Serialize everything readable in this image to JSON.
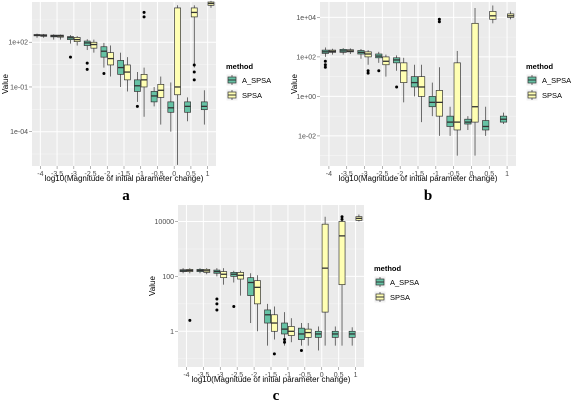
{
  "colors": {
    "A_SPSA": "#66c2a5",
    "SPSA": "#ffffb3",
    "panel_bg": "#ebebeb",
    "grid": "#ffffff",
    "box_line": "#333333"
  },
  "chart_data": [
    {
      "panel_label": "a",
      "type": "boxplot",
      "scale": "log10",
      "xlabel": "log10(Magnitude of initial parameter change)",
      "ylabel": "Value",
      "xticks": [
        "-4",
        "-3.5",
        "-3",
        "-2.5",
        "-2",
        "-1.5",
        "-1",
        "-0.5",
        "0",
        "0.5",
        "1"
      ],
      "yticks": [
        {
          "label": "1e+02",
          "value": 100
        },
        {
          "label": "1e-01",
          "value": 0.1
        },
        {
          "label": "1e-04",
          "value": 0.0001
        }
      ],
      "ylim": [
        5e-07,
        50000
      ],
      "legend": {
        "title": "method",
        "position": "right",
        "entries": [
          "A_SPSA",
          "SPSA"
        ]
      },
      "series": [
        {
          "name": "A_SPSA",
          "boxes": [
            {
              "x": -4,
              "whislo": 200,
              "q1": 270,
              "med": 300,
              "q3": 330,
              "whishi": 380,
              "outliers": []
            },
            {
              "x": -3.5,
              "whislo": 150,
              "q1": 230,
              "med": 270,
              "q3": 300,
              "whishi": 340,
              "outliers": []
            },
            {
              "x": -3,
              "whislo": 80,
              "q1": 150,
              "med": 200,
              "q3": 240,
              "whishi": 300,
              "outliers": [
                10
              ]
            },
            {
              "x": -2.5,
              "whislo": 30,
              "q1": 60,
              "med": 90,
              "q3": 120,
              "whishi": 160,
              "outliers": [
                4,
                1.5
              ]
            },
            {
              "x": -2,
              "whislo": 2,
              "q1": 10,
              "med": 25,
              "q3": 50,
              "whishi": 90,
              "outliers": [
                0.8
              ]
            },
            {
              "x": -1.5,
              "whislo": 0.1,
              "q1": 0.7,
              "med": 2,
              "q3": 6,
              "whishi": 20,
              "outliers": []
            },
            {
              "x": -1,
              "whislo": 0.01,
              "q1": 0.05,
              "med": 0.12,
              "q3": 0.3,
              "whishi": 1.0,
              "outliers": [
                0.005
              ]
            },
            {
              "x": -0.5,
              "whislo": 0.005,
              "q1": 0.01,
              "med": 0.025,
              "q3": 0.05,
              "whishi": 0.1,
              "outliers": []
            },
            {
              "x": 0,
              "whislo": 0.0001,
              "q1": 0.002,
              "med": 0.004,
              "q3": 0.01,
              "whishi": 0.2,
              "outliers": []
            },
            {
              "x": 0.5,
              "whislo": 0.0005,
              "q1": 0.002,
              "med": 0.005,
              "q3": 0.01,
              "whishi": 0.02,
              "outliers": []
            },
            {
              "x": 1,
              "whislo": 0.0003,
              "q1": 0.003,
              "med": 0.005,
              "q3": 0.01,
              "whishi": 0.06,
              "outliers": []
            }
          ]
        },
        {
          "name": "SPSA",
          "boxes": [
            {
              "x": -4,
              "whislo": 200,
              "q1": 250,
              "med": 290,
              "q3": 320,
              "whishi": 360,
              "outliers": []
            },
            {
              "x": -3.5,
              "whislo": 150,
              "q1": 220,
              "med": 260,
              "q3": 300,
              "whishi": 330,
              "outliers": []
            },
            {
              "x": -3,
              "whislo": 60,
              "q1": 110,
              "med": 150,
              "q3": 210,
              "whishi": 260,
              "outliers": []
            },
            {
              "x": -2.5,
              "whislo": 20,
              "q1": 40,
              "med": 70,
              "q3": 100,
              "whishi": 150,
              "outliers": []
            },
            {
              "x": -2,
              "whislo": 0.5,
              "q1": 3,
              "med": 8,
              "q3": 20,
              "whishi": 60,
              "outliers": []
            },
            {
              "x": -1.5,
              "whislo": 0.05,
              "q1": 0.3,
              "med": 1,
              "q3": 3,
              "whishi": 10,
              "outliers": []
            },
            {
              "x": -1,
              "whislo": 0.001,
              "q1": 0.1,
              "med": 0.3,
              "q3": 0.7,
              "whishi": 2,
              "outliers": [
                10000,
                5000
              ]
            },
            {
              "x": -0.5,
              "whislo": 0.0003,
              "q1": 0.02,
              "med": 0.06,
              "q3": 0.15,
              "whishi": 0.5,
              "outliers": []
            },
            {
              "x": 0,
              "whislo": 6e-07,
              "q1": 0.03,
              "med": 0.1,
              "q3": 20000,
              "whishi": 30000,
              "outliers": []
            },
            {
              "x": 0.5,
              "whislo": 2,
              "q1": 5000,
              "med": 10000,
              "q3": 20000,
              "whishi": 30000,
              "outliers": [
                3,
                1,
                0.3
              ]
            },
            {
              "x": 1,
              "whislo": 20000,
              "q1": 30000,
              "med": 40000,
              "q3": 50000,
              "whishi": 60000,
              "outliers": []
            }
          ]
        }
      ]
    },
    {
      "panel_label": "b",
      "type": "boxplot",
      "scale": "log10",
      "xlabel": "log10(Magnitude of initial parameter change)",
      "ylabel": "Value",
      "xticks": [
        "-4",
        "-3.5",
        "-3",
        "-2.5",
        "-2",
        "-1.5",
        "-1",
        "-0.5",
        "0",
        "0.5",
        "1"
      ],
      "yticks": [
        {
          "label": "1e+04",
          "value": 10000
        },
        {
          "label": "1e+02",
          "value": 100
        },
        {
          "label": "1e+00",
          "value": 1
        },
        {
          "label": "1e-02",
          "value": 0.01
        }
      ],
      "ylim": [
        0.0003,
        60000
      ],
      "legend": {
        "title": "method",
        "position": "right",
        "entries": [
          "A_SPSA",
          "SPSA"
        ]
      },
      "series": [
        {
          "name": "A_SPSA",
          "boxes": [
            {
              "x": -4,
              "whislo": 100,
              "q1": 150,
              "med": 180,
              "q3": 220,
              "whishi": 300,
              "outliers": [
                60,
                40,
                30
              ]
            },
            {
              "x": -3.5,
              "whislo": 130,
              "q1": 170,
              "med": 200,
              "q3": 240,
              "whishi": 280,
              "outliers": []
            },
            {
              "x": -3,
              "whislo": 80,
              "q1": 140,
              "med": 170,
              "q3": 210,
              "whishi": 250,
              "outliers": []
            },
            {
              "x": -2.5,
              "whislo": 50,
              "q1": 90,
              "med": 110,
              "q3": 140,
              "whishi": 180,
              "outliers": [
                20
              ]
            },
            {
              "x": -2,
              "whislo": 20,
              "q1": 50,
              "med": 70,
              "q3": 90,
              "whishi": 120,
              "outliers": [
                3
              ]
            },
            {
              "x": -1.5,
              "whislo": 1,
              "q1": 3,
              "med": 5,
              "q3": 10,
              "whishi": 40,
              "outliers": []
            },
            {
              "x": -1,
              "whislo": 0.1,
              "q1": 0.3,
              "med": 0.5,
              "q3": 1.0,
              "whishi": 5,
              "outliers": []
            },
            {
              "x": -0.5,
              "whislo": 0.01,
              "q1": 0.03,
              "med": 0.05,
              "q3": 0.1,
              "whishi": 0.3,
              "outliers": []
            },
            {
              "x": 0,
              "whislo": 0.02,
              "q1": 0.04,
              "med": 0.05,
              "q3": 0.07,
              "whishi": 0.1,
              "outliers": []
            },
            {
              "x": 0.5,
              "whislo": 0.01,
              "q1": 0.02,
              "med": 0.03,
              "q3": 0.06,
              "whishi": 0.3,
              "outliers": []
            },
            {
              "x": 1,
              "whislo": 0.04,
              "q1": 0.05,
              "med": 0.07,
              "q3": 0.1,
              "whishi": 0.15,
              "outliers": []
            }
          ]
        },
        {
          "name": "SPSA",
          "boxes": [
            {
              "x": -4,
              "whislo": 130,
              "q1": 170,
              "med": 190,
              "q3": 220,
              "whishi": 260,
              "outliers": []
            },
            {
              "x": -3.5,
              "whislo": 140,
              "q1": 180,
              "med": 200,
              "q3": 230,
              "whishi": 270,
              "outliers": []
            },
            {
              "x": -3,
              "whislo": 40,
              "q1": 100,
              "med": 140,
              "q3": 180,
              "whishi": 220,
              "outliers": [
                20,
                15
              ]
            },
            {
              "x": -2.5,
              "whislo": 10,
              "q1": 40,
              "med": 60,
              "q3": 100,
              "whishi": 130,
              "outliers": []
            },
            {
              "x": -2,
              "whislo": 0.5,
              "q1": 5,
              "med": 20,
              "q3": 50,
              "whishi": 90,
              "outliers": []
            },
            {
              "x": -1.5,
              "whislo": 0.05,
              "q1": 1,
              "med": 3,
              "q3": 10,
              "whishi": 40,
              "outliers": []
            },
            {
              "x": -1,
              "whislo": 0.01,
              "q1": 0.1,
              "med": 0.5,
              "q3": 2,
              "whishi": 30,
              "outliers": [
                8000,
                6000
              ]
            },
            {
              "x": -0.5,
              "whislo": 0.001,
              "q1": 0.02,
              "med": 0.05,
              "q3": 50,
              "whishi": 200,
              "outliers": []
            },
            {
              "x": 0,
              "whislo": 0.001,
              "q1": 0.05,
              "med": 0.3,
              "q3": 5000,
              "whishi": 30000,
              "outliers": []
            },
            {
              "x": 0.5,
              "whislo": 5000,
              "q1": 8000,
              "med": 12000,
              "q3": 20000,
              "whishi": 40000,
              "outliers": []
            },
            {
              "x": 1,
              "whislo": 8000,
              "q1": 10000,
              "med": 12000,
              "q3": 15000,
              "whishi": 20000,
              "outliers": []
            }
          ]
        }
      ]
    },
    {
      "panel_label": "c",
      "type": "boxplot",
      "scale": "log10",
      "xlabel": "log10(Magnitude of initial parameter change)",
      "ylabel": "Value",
      "xticks": [
        "-4",
        "-3.5",
        "-3",
        "-2.5",
        "-2",
        "-1.5",
        "-1",
        "-0.5",
        "0",
        "0.5",
        "1"
      ],
      "yticks": [
        {
          "label": "10000",
          "value": 10000
        },
        {
          "label": "100",
          "value": 100
        },
        {
          "label": "1",
          "value": 1
        }
      ],
      "ylim": [
        0.05,
        40000
      ],
      "legend": {
        "title": "method",
        "position": "right",
        "entries": [
          "A_SPSA",
          "SPSA"
        ]
      },
      "series": [
        {
          "name": "A_SPSA",
          "boxes": [
            {
              "x": -4,
              "whislo": 130,
              "q1": 150,
              "med": 160,
              "q3": 175,
              "whishi": 200,
              "outliers": []
            },
            {
              "x": -3.5,
              "whislo": 130,
              "q1": 150,
              "med": 165,
              "q3": 180,
              "whishi": 200,
              "outliers": []
            },
            {
              "x": -3,
              "whislo": 100,
              "q1": 130,
              "med": 150,
              "q3": 170,
              "whishi": 200,
              "outliers": [
                15,
                10,
                6
              ]
            },
            {
              "x": -2.5,
              "whislo": 60,
              "q1": 100,
              "med": 120,
              "q3": 140,
              "whishi": 160,
              "outliers": [
                8
              ]
            },
            {
              "x": -2,
              "whislo": 2,
              "q1": 20,
              "med": 60,
              "q3": 90,
              "whishi": 130,
              "outliers": []
            },
            {
              "x": -1.5,
              "whislo": 0.3,
              "q1": 2,
              "med": 4,
              "q3": 6,
              "whishi": 10,
              "outliers": []
            },
            {
              "x": -1,
              "whislo": 0.3,
              "q1": 0.8,
              "med": 1.2,
              "q3": 2,
              "whishi": 5,
              "outliers": [
                0.5,
                0.4
              ]
            },
            {
              "x": -0.5,
              "whislo": 0.3,
              "q1": 0.5,
              "med": 0.8,
              "q3": 1.3,
              "whishi": 2,
              "outliers": [
                0.2
              ]
            },
            {
              "x": 0,
              "whislo": 0.2,
              "q1": 0.6,
              "med": 0.8,
              "q3": 1.0,
              "whishi": 1.5,
              "outliers": []
            },
            {
              "x": 0.5,
              "whislo": 0.3,
              "q1": 0.6,
              "med": 0.8,
              "q3": 1.0,
              "whishi": 1.5,
              "outliers": []
            },
            {
              "x": 1,
              "whislo": 0.3,
              "q1": 0.6,
              "med": 0.8,
              "q3": 1.0,
              "whishi": 1.4,
              "outliers": []
            }
          ]
        },
        {
          "name": "SPSA",
          "boxes": [
            {
              "x": -4,
              "whislo": 130,
              "q1": 150,
              "med": 165,
              "q3": 180,
              "whishi": 200,
              "outliers": [
                2.5
              ]
            },
            {
              "x": -3.5,
              "whislo": 120,
              "q1": 140,
              "med": 160,
              "q3": 180,
              "whishi": 200,
              "outliers": []
            },
            {
              "x": -3,
              "whislo": 50,
              "q1": 90,
              "med": 120,
              "q3": 150,
              "whishi": 200,
              "outliers": []
            },
            {
              "x": -2.5,
              "whislo": 20,
              "q1": 80,
              "med": 110,
              "q3": 140,
              "whishi": 160,
              "outliers": []
            },
            {
              "x": -2,
              "whislo": 1,
              "q1": 10,
              "med": 40,
              "q3": 70,
              "whishi": 110,
              "outliers": []
            },
            {
              "x": -1.5,
              "whislo": 0.5,
              "q1": 1,
              "med": 2,
              "q3": 4,
              "whishi": 8,
              "outliers": [
                0.15
              ]
            },
            {
              "x": -1,
              "whislo": 0.4,
              "q1": 0.7,
              "med": 1.0,
              "q3": 1.5,
              "whishi": 3,
              "outliers": []
            },
            {
              "x": -0.5,
              "whislo": 0.3,
              "q1": 0.6,
              "med": 0.9,
              "q3": 1.2,
              "whishi": 2,
              "outliers": []
            },
            {
              "x": 0,
              "whislo": 0.3,
              "q1": 5,
              "med": 200,
              "q3": 8000,
              "whishi": 15000,
              "outliers": []
            },
            {
              "x": 0.5,
              "whislo": 0.3,
              "q1": 50,
              "med": 3000,
              "q3": 10000,
              "whishi": 12000,
              "outliers": [
                15000,
                12000
              ]
            },
            {
              "x": 1,
              "whislo": 10000,
              "q1": 11000,
              "med": 13000,
              "q3": 15000,
              "whishi": 18000,
              "outliers": []
            }
          ]
        }
      ]
    }
  ]
}
